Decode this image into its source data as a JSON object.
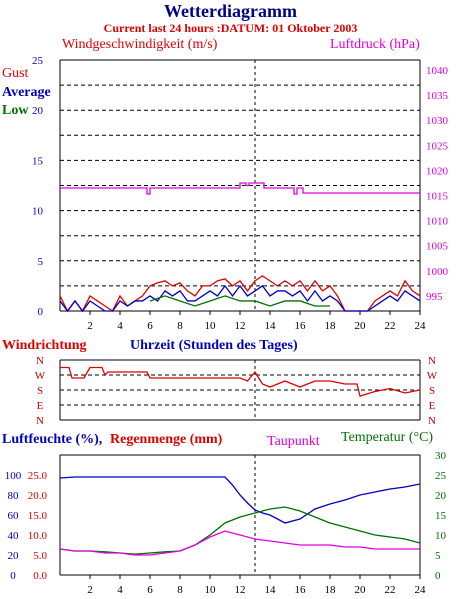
{
  "title": "Wetterdiagramm",
  "subtitle": "Current last 24 hours :DATUM: 01 Oktober 2003",
  "colors": {
    "title": "#00008b",
    "red": "#e00000",
    "blue": "#0000c0",
    "green": "#007000",
    "magenta": "#e000e0",
    "black": "#000000",
    "axis_red": "#c00000"
  },
  "panel1": {
    "left_label": "Windgeschwindigkeit (m/s)",
    "right_label": "Luftdruck (hPa)",
    "legend": [
      "Gust",
      "Average",
      "Low"
    ]
  },
  "panel2": {
    "left_label": "Windrichtung",
    "center_label": "Uhrzeit (Stunden des Tages)"
  },
  "panel3": {
    "left_label1": "Luftfeuchte (%),",
    "left_label2": "Regenmenge (mm)",
    "center_label": "Taupunkt",
    "right_label": "Temperatur (°C)"
  },
  "chart_data": [
    {
      "type": "line",
      "title": "Windgeschwindigkeit (m/s) / Luftdruck (hPa)",
      "x_range": [
        0,
        24
      ],
      "x_ticks": [
        2,
        4,
        6,
        8,
        10,
        12,
        14,
        16,
        18,
        20,
        22,
        24
      ],
      "ylim": [
        0,
        25
      ],
      "y_ticks": [
        0,
        5,
        10,
        15,
        20,
        25
      ],
      "y2lim": [
        992,
        1042
      ],
      "y2_ticks": [
        995,
        1000,
        1005,
        1010,
        1015,
        1020,
        1025,
        1030,
        1035,
        1040
      ],
      "grid": true,
      "current_time_marker": 13,
      "series": [
        {
          "name": "Gust",
          "axis": "left",
          "x": [
            0,
            0.5,
            1,
            1.5,
            2,
            2.5,
            3,
            3.5,
            4,
            4.5,
            5,
            5.5,
            6,
            6.5,
            7,
            7.5,
            8,
            8.5,
            9,
            9.5,
            10,
            10.5,
            11,
            11.5,
            12,
            12.5,
            13,
            13.5,
            14,
            14.5,
            15,
            15.5,
            16,
            16.5,
            17,
            17.5,
            18,
            18.5,
            19,
            19.5,
            20,
            20.5,
            21,
            21.5,
            22,
            22.5,
            23,
            23.5,
            24
          ],
          "values": [
            1.5,
            0,
            1,
            0,
            1.5,
            1,
            0.5,
            0,
            1.5,
            0.5,
            1,
            1.5,
            2.5,
            2.8,
            3,
            2.5,
            2.8,
            2,
            1.5,
            2.5,
            2.5,
            3,
            3.2,
            2.5,
            3,
            2,
            3,
            3.5,
            3,
            2.5,
            3,
            2.5,
            3,
            2,
            3,
            2,
            2.5,
            1.5,
            0,
            0,
            0,
            0,
            1,
            1.5,
            2,
            1.5,
            3,
            2,
            1.5
          ]
        },
        {
          "name": "Average",
          "axis": "left",
          "x": [
            0,
            0.5,
            1,
            1.5,
            2,
            2.5,
            3,
            3.5,
            4,
            4.5,
            5,
            5.5,
            6,
            6.5,
            7,
            7.5,
            8,
            8.5,
            9,
            9.5,
            10,
            10.5,
            11,
            11.5,
            12,
            12.5,
            13,
            13.5,
            14,
            14.5,
            15,
            15.5,
            16,
            16.5,
            17,
            17.5,
            18,
            18.5,
            19,
            19.5,
            20,
            20.5,
            21,
            21.5,
            22,
            22.5,
            23,
            23.5,
            24
          ],
          "values": [
            1,
            0,
            1,
            0,
            1,
            0.5,
            0,
            0,
            1,
            0.5,
            1,
            1,
            1.5,
            1,
            2,
            1.5,
            2,
            1,
            1,
            1.5,
            2,
            1.5,
            2.5,
            1.5,
            2.5,
            1.5,
            2,
            2.5,
            1.5,
            2,
            2,
            1.5,
            2,
            1,
            2,
            1,
            1.5,
            1,
            0,
            0,
            0,
            0,
            0.5,
            1,
            1.5,
            1,
            2,
            1.5,
            1
          ]
        },
        {
          "name": "Low",
          "axis": "left",
          "x": [
            6,
            7,
            8,
            9,
            10,
            11,
            12,
            13,
            14,
            15,
            16,
            17,
            18
          ],
          "values": [
            1,
            1.5,
            1,
            0.5,
            1,
            1.5,
            1,
            1,
            0.5,
            1,
            1,
            0.5,
            0.5
          ]
        },
        {
          "name": "Luftdruck",
          "axis": "right",
          "x": [
            0,
            5.6,
            5.8,
            6,
            11.8,
            12,
            12.4,
            12.6,
            13.4,
            13.6,
            15.4,
            15.6,
            15.8,
            16.2,
            16.4,
            24
          ],
          "values": [
            1016.5,
            1016.5,
            1015.3,
            1016.5,
            1016.5,
            1017.5,
            1017.0,
            1017.5,
            1017.5,
            1016.5,
            1016.5,
            1015.3,
            1016.5,
            1015.5,
            1015.5,
            1015.5
          ]
        }
      ]
    },
    {
      "type": "line",
      "title": "Windrichtung",
      "x_range": [
        0,
        24
      ],
      "y_categories": [
        "E",
        "S",
        "W",
        "N"
      ],
      "y_ticks_left": [
        "N",
        "W",
        "S",
        "E",
        "N"
      ],
      "y_ticks_right": [
        "N",
        "W",
        "S",
        "E",
        "N"
      ],
      "grid": true,
      "current_time_marker": 13,
      "series": [
        {
          "name": "Windrichtung",
          "x": [
            0,
            0.6,
            0.8,
            1.6,
            2,
            2.8,
            3,
            3.2,
            4,
            5,
            5.8,
            6,
            7,
            8,
            9,
            10,
            11,
            12,
            12.5,
            13,
            13.5,
            14,
            15,
            16,
            17,
            17.5,
            18,
            19,
            19.8,
            20,
            21,
            22,
            23,
            24
          ],
          "values": [
            3.5,
            3.5,
            2.8,
            2.8,
            3.5,
            3.5,
            3,
            3.2,
            3.2,
            3.2,
            3.2,
            2.8,
            2.8,
            2.8,
            2.8,
            2.8,
            2.8,
            2.8,
            2.6,
            3.2,
            2.4,
            2.2,
            2.6,
            2.2,
            2.6,
            2.6,
            2.6,
            2.4,
            2.4,
            1.6,
            1.9,
            2.1,
            1.8,
            2.0
          ]
        }
      ]
    },
    {
      "type": "line",
      "title": "Luftfeuchte / Regenmenge / Taupunkt / Temperatur",
      "x_range": [
        0,
        24
      ],
      "x_ticks": [
        2,
        4,
        6,
        8,
        10,
        12,
        14,
        16,
        18,
        20,
        22,
        24
      ],
      "y_left_ticks_pct": [
        0,
        20,
        40,
        60,
        80,
        100
      ],
      "y_left_ticks_mm": [
        "0.0",
        "5.0",
        "10.0",
        "15.0",
        "20.0",
        "25.0"
      ],
      "y_right_ticks": [
        0,
        5,
        10,
        15,
        20,
        25,
        30
      ],
      "ylim": [
        0,
        120
      ],
      "y2lim": [
        0,
        30
      ],
      "current_time_marker": 13,
      "series": [
        {
          "name": "Luftfeuchte",
          "axis": "left",
          "x": [
            0,
            1,
            2,
            4,
            6,
            8,
            10,
            11,
            11.5,
            12,
            12.5,
            13,
            13.5,
            14,
            15,
            16,
            17,
            18,
            19,
            20,
            21,
            22,
            23,
            24
          ],
          "values": [
            97,
            98,
            98,
            98,
            98,
            98,
            98,
            98,
            90,
            80,
            72,
            65,
            62,
            60,
            52,
            56,
            66,
            71,
            75,
            80,
            83,
            86,
            88,
            91
          ]
        },
        {
          "name": "Temperatur",
          "axis": "right",
          "x": [
            0,
            1,
            2,
            3,
            4,
            5,
            6,
            7,
            8,
            9,
            10,
            11,
            12,
            13,
            14,
            15,
            16,
            17,
            18,
            19,
            20,
            21,
            22,
            23,
            24
          ],
          "values": [
            6.5,
            6,
            6,
            5.8,
            5.5,
            5.2,
            5.5,
            5.8,
            6,
            7.5,
            10,
            13,
            14.5,
            15.5,
            16.5,
            17,
            16,
            14.5,
            13,
            12,
            11,
            10,
            9.5,
            9,
            8
          ]
        },
        {
          "name": "Taupunkt",
          "axis": "right",
          "x": [
            0,
            1,
            2,
            3,
            4,
            5,
            6,
            7,
            8,
            9,
            10,
            11,
            12,
            13,
            14,
            15,
            16,
            17,
            18,
            19,
            20,
            21,
            22,
            23,
            24
          ],
          "values": [
            6.5,
            6,
            6,
            5.5,
            5.5,
            5,
            5,
            5.5,
            6,
            7.5,
            9.5,
            11,
            10,
            9,
            8.5,
            8,
            7.5,
            7.5,
            7.5,
            7,
            7,
            6.5,
            6.5,
            6.5,
            6.5
          ]
        }
      ]
    }
  ]
}
